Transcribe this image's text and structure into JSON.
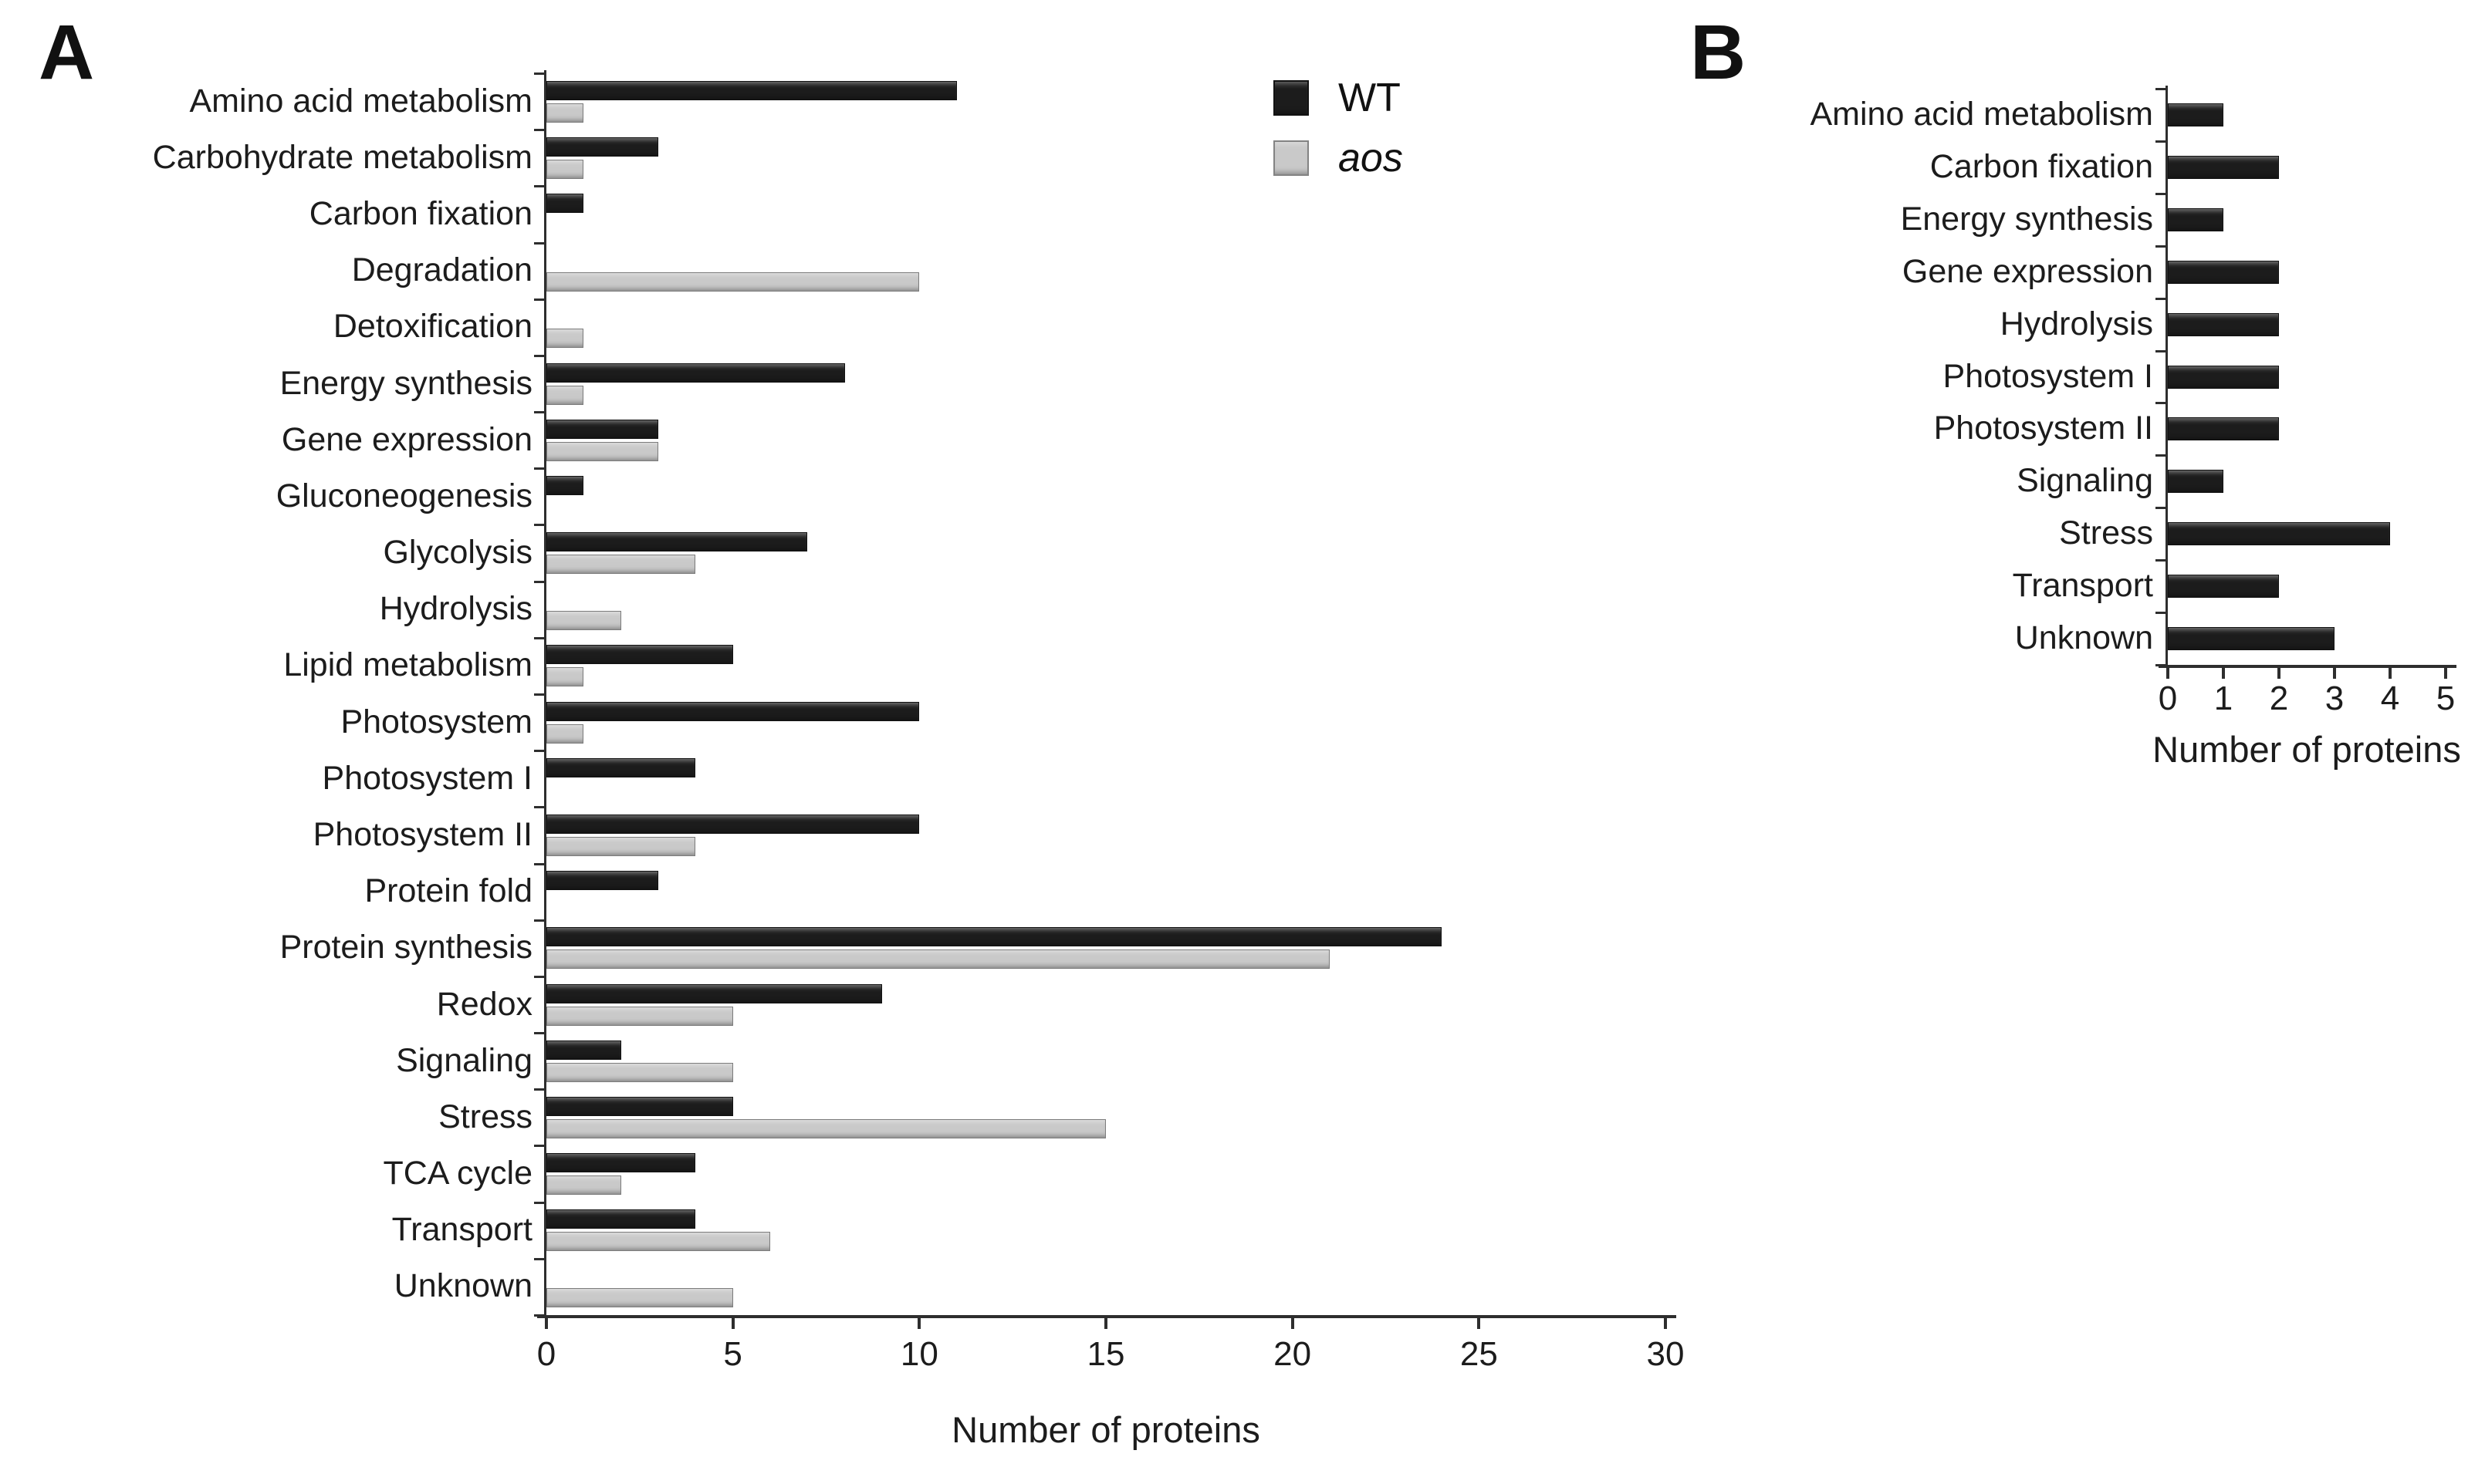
{
  "figure_type": "grouped horizontal bar charts",
  "chart_data": [
    {
      "id": "A",
      "type": "bar",
      "orientation": "horizontal",
      "xlabel": "Number of proteins",
      "xlim": [
        0,
        30
      ],
      "xticks": [
        0,
        5,
        10,
        15,
        20,
        25,
        30
      ],
      "grid": false,
      "legend_position": "top-right",
      "categories": [
        "Amino acid metabolism",
        "Carbohydrate metabolism",
        "Carbon fixation",
        "Degradation",
        "Detoxification",
        "Energy synthesis",
        "Gene expression",
        "Gluconeogenesis",
        "Glycolysis",
        "Hydrolysis",
        "Lipid metabolism",
        "Photosystem",
        "Photosystem I",
        "Photosystem II",
        "Protein fold",
        "Protein synthesis",
        "Redox",
        "Signaling",
        "Stress",
        "TCA cycle",
        "Transport",
        "Unknown"
      ],
      "series": [
        {
          "name": "WT",
          "color": "#1c1c1c",
          "italic": false,
          "values": [
            11,
            3,
            1,
            0,
            0,
            8,
            3,
            1,
            7,
            0,
            5,
            10,
            4,
            10,
            3,
            24,
            9,
            2,
            5,
            4,
            4,
            0
          ]
        },
        {
          "name": "aos",
          "color": "#c9c9c9",
          "italic": true,
          "values": [
            1,
            1,
            0,
            10,
            1,
            1,
            3,
            0,
            4,
            2,
            1,
            1,
            0,
            4,
            0,
            21,
            5,
            5,
            15,
            2,
            6,
            5
          ]
        }
      ]
    },
    {
      "id": "B",
      "type": "bar",
      "orientation": "horizontal",
      "xlabel": "Number of proteins",
      "xlim": [
        0,
        5
      ],
      "xticks": [
        0,
        1,
        2,
        3,
        4,
        5
      ],
      "grid": false,
      "legend_position": "none",
      "categories": [
        "Amino acid metabolism",
        "Carbon fixation",
        "Energy synthesis",
        "Gene expression",
        "Hydrolysis",
        "Photosystem I",
        "Photosystem II",
        "Signaling",
        "Stress",
        "Transport",
        "Unknown"
      ],
      "series": [
        {
          "name": "WT",
          "color": "#1c1c1c",
          "italic": false,
          "values": [
            1,
            2,
            1,
            2,
            2,
            2,
            2,
            1,
            4,
            2,
            3
          ]
        }
      ]
    }
  ]
}
